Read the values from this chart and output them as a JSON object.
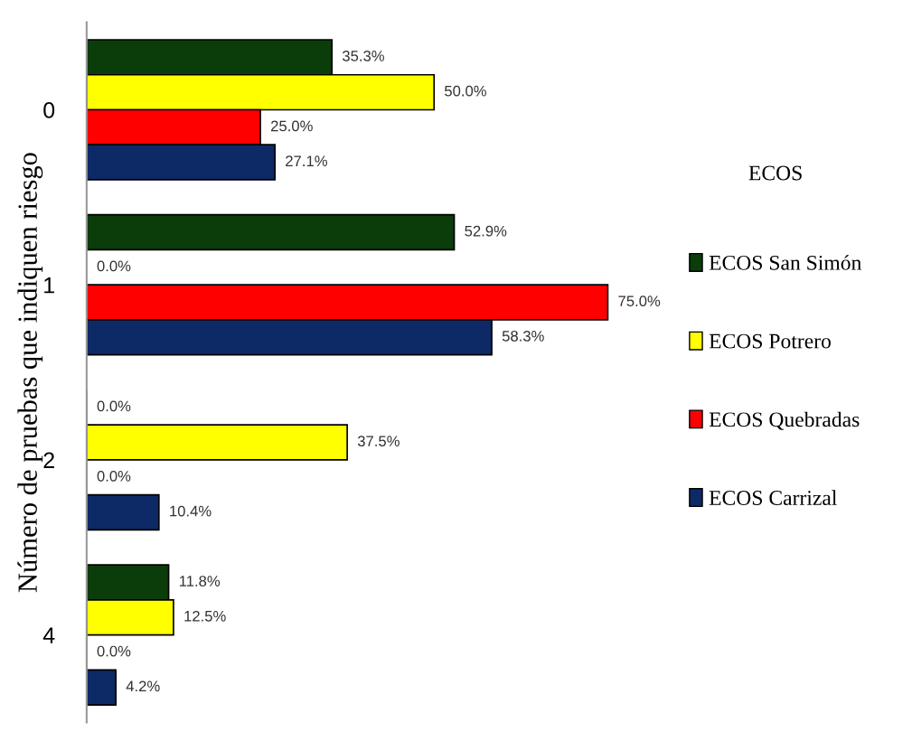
{
  "chart_data": {
    "type": "bar",
    "orientation": "horizontal",
    "ylabel": "Número de pruebas que indiquen riesgo",
    "legend_title": "ECOS",
    "legend": "right",
    "grid": false,
    "tick_labels": "y",
    "categories": [
      "0",
      "1",
      "2",
      "4"
    ],
    "series": [
      {
        "name": "ECOS San Simón",
        "color": "#0b3d0b",
        "values": [
          35.3,
          52.9,
          0.0,
          11.8
        ],
        "value_labels": [
          "35.3%",
          "52.9%",
          "0.0%",
          "11.8%"
        ]
      },
      {
        "name": "ECOS Potrero",
        "color": "#ffff00",
        "values": [
          50.0,
          0.0,
          37.5,
          12.5
        ],
        "value_labels": [
          "50.0%",
          "0.0%",
          "37.5%",
          "12.5%"
        ]
      },
      {
        "name": "ECOS Quebradas",
        "color": "#ff0000",
        "values": [
          25.0,
          75.0,
          0.0,
          0.0
        ],
        "value_labels": [
          "25.0%",
          "75.0%",
          "0.0%",
          "0.0%"
        ]
      },
      {
        "name": "ECOS Carrizal",
        "color": "#0d2a66",
        "values": [
          27.1,
          58.3,
          10.4,
          4.2
        ],
        "value_labels": [
          "27.1%",
          "58.3%",
          "10.4%",
          "4.2%"
        ]
      }
    ]
  }
}
